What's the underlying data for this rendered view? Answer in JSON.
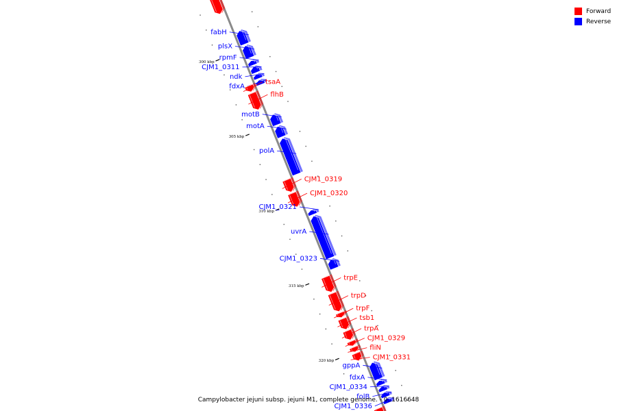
{
  "legend": {
    "forward_label": "Forward",
    "reverse_label": "Reverse",
    "forward_color": "#ff0000",
    "reverse_color": "#0000ff"
  },
  "caption": "Campylobacter jejuni subsp. jejuni M1, complete genome. - 0..1616648",
  "colors": {
    "backbone": "#8a8a8a",
    "forward": "#ff0000",
    "reverse": "#0000ff"
  },
  "genome_view": {
    "kbp_start": 296.6,
    "kbp_end": 324.1,
    "ticks": [
      {
        "kbp": 300,
        "label": "300 kbp"
      },
      {
        "kbp": 305,
        "label": "305 kbp"
      },
      {
        "kbp": 310,
        "label": "310 kbp"
      },
      {
        "kbp": 315,
        "label": "315 kbp"
      },
      {
        "kbp": 320,
        "label": "320 kbp"
      }
    ],
    "genes": [
      {
        "name": "",
        "strand": "forward",
        "start_kbp": 296.3,
        "end_kbp": 297.4
      },
      {
        "name": "fabH",
        "strand": "reverse",
        "start_kbp": 298.8,
        "end_kbp": 299.7
      },
      {
        "name": "plsX",
        "strand": "reverse",
        "start_kbp": 299.8,
        "end_kbp": 300.6
      },
      {
        "name": "rpmF",
        "strand": "reverse",
        "start_kbp": 300.8,
        "end_kbp": 301.1
      },
      {
        "name": "CJM1_0311",
        "strand": "reverse",
        "start_kbp": 301.2,
        "end_kbp": 301.6
      },
      {
        "name": "ndk",
        "strand": "reverse",
        "start_kbp": 301.7,
        "end_kbp": 302.0
      },
      {
        "name": "fdxA",
        "strand": "reverse",
        "start_kbp": 302.1,
        "end_kbp": 302.4
      },
      {
        "name": "tsaA",
        "strand": "forward",
        "start_kbp": 302.2,
        "end_kbp": 302.6
      },
      {
        "name": "flhB",
        "strand": "forward",
        "start_kbp": 302.7,
        "end_kbp": 303.8
      },
      {
        "name": "motB",
        "strand": "reverse",
        "start_kbp": 304.4,
        "end_kbp": 305.1
      },
      {
        "name": "motA",
        "strand": "reverse",
        "start_kbp": 305.2,
        "end_kbp": 305.9
      },
      {
        "name": "polA",
        "strand": "reverse",
        "start_kbp": 306.0,
        "end_kbp": 308.4
      },
      {
        "name": "CJM1_0319",
        "strand": "forward",
        "start_kbp": 308.5,
        "end_kbp": 309.3
      },
      {
        "name": "CJM1_0320",
        "strand": "forward",
        "start_kbp": 309.4,
        "end_kbp": 310.3
      },
      {
        "name": "CJM1_0321",
        "strand": "reverse",
        "start_kbp": 310.8,
        "end_kbp": 311.1
      },
      {
        "name": "uvrA",
        "strand": "reverse",
        "start_kbp": 311.2,
        "end_kbp": 314.0
      },
      {
        "name": "CJM1_0323",
        "strand": "reverse",
        "start_kbp": 314.1,
        "end_kbp": 314.7
      },
      {
        "name": "trpE",
        "strand": "forward",
        "start_kbp": 315.0,
        "end_kbp": 316.0
      },
      {
        "name": "trpD",
        "strand": "forward",
        "start_kbp": 316.1,
        "end_kbp": 317.3
      },
      {
        "name": "trpF",
        "strand": "forward",
        "start_kbp": 317.4,
        "end_kbp": 317.7
      },
      {
        "name": "tsb1",
        "strand": "forward",
        "start_kbp": 317.8,
        "end_kbp": 318.5
      },
      {
        "name": "trpA",
        "strand": "forward",
        "start_kbp": 318.6,
        "end_kbp": 319.2
      },
      {
        "name": "CJM1_0329",
        "strand": "forward",
        "start_kbp": 319.3,
        "end_kbp": 319.6
      },
      {
        "name": "fliN",
        "strand": "forward",
        "start_kbp": 319.7,
        "end_kbp": 320.0
      },
      {
        "name": "CJM1_0331",
        "strand": "forward",
        "start_kbp": 320.1,
        "end_kbp": 320.6
      },
      {
        "name": "gppA",
        "strand": "reverse",
        "start_kbp": 321.0,
        "end_kbp": 322.1
      },
      {
        "name": "fdxA",
        "strand": "reverse",
        "start_kbp": 322.2,
        "end_kbp": 322.5
      },
      {
        "name": "CJM1_0334",
        "strand": "reverse",
        "start_kbp": 322.6,
        "end_kbp": 322.9
      },
      {
        "name": "folB",
        "strand": "reverse",
        "start_kbp": 323.0,
        "end_kbp": 323.3
      },
      {
        "name": "CJM1_0336",
        "strand": "reverse",
        "start_kbp": 323.4,
        "end_kbp": 323.7
      },
      {
        "name": "",
        "strand": "forward",
        "start_kbp": 323.8,
        "end_kbp": 324.6
      }
    ]
  }
}
